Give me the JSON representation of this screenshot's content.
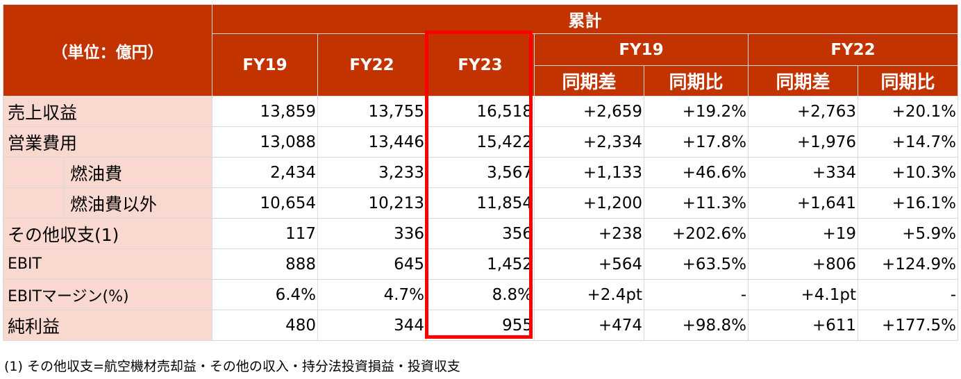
{
  "header": {
    "unit": "（単位：億円）",
    "cumulative": "累計",
    "years": [
      "FY19",
      "FY22",
      "FY23"
    ],
    "compare_groups": [
      "FY19",
      "FY22"
    ],
    "diff_label": "同期差",
    "ratio_label": "同期比"
  },
  "rows": [
    {
      "label": "売上収益",
      "values": [
        "13,859",
        "13,755",
        "16,518",
        "+2,659",
        "+19.2%",
        "+2,763",
        "+20.1%"
      ]
    },
    {
      "label": "営業費用",
      "values": [
        "13,088",
        "13,446",
        "15,422",
        "+2,334",
        "+17.8%",
        "+1,976",
        "+14.7%"
      ]
    },
    {
      "label": "燃油費",
      "values": [
        "2,434",
        "3,233",
        "3,567",
        "+1,133",
        "+46.6%",
        "+334",
        "+10.3%"
      ]
    },
    {
      "label": "燃油費以外",
      "values": [
        "10,654",
        "10,213",
        "11,854",
        "+1,200",
        "+11.3%",
        "+1,641",
        "+16.1%"
      ]
    },
    {
      "label": "その他収支(1)",
      "values": [
        "117",
        "336",
        "356",
        "+238",
        "+202.6%",
        "+19",
        "+5.9%"
      ]
    },
    {
      "label": "EBIT",
      "values": [
        "888",
        "645",
        "1,452",
        "+564",
        "+63.5%",
        "+806",
        "+124.9%"
      ]
    },
    {
      "label": "EBITマージン(%)",
      "values": [
        "6.4%",
        "4.7%",
        "8.8%",
        "+2.4pt",
        "-",
        "+4.1pt",
        "-"
      ]
    },
    {
      "label": "純利益",
      "values": [
        "480",
        "344",
        "955",
        "+474",
        "+98.8%",
        "+611",
        "+177.5%"
      ]
    }
  ],
  "footnote": "(1) その他収支=航空機材売却益・その他の収入・持分法投資損益・投資収支",
  "highlight_color": "#ff0000",
  "header_color": "#c33300",
  "label_bg_color": "#f9d9cf"
}
